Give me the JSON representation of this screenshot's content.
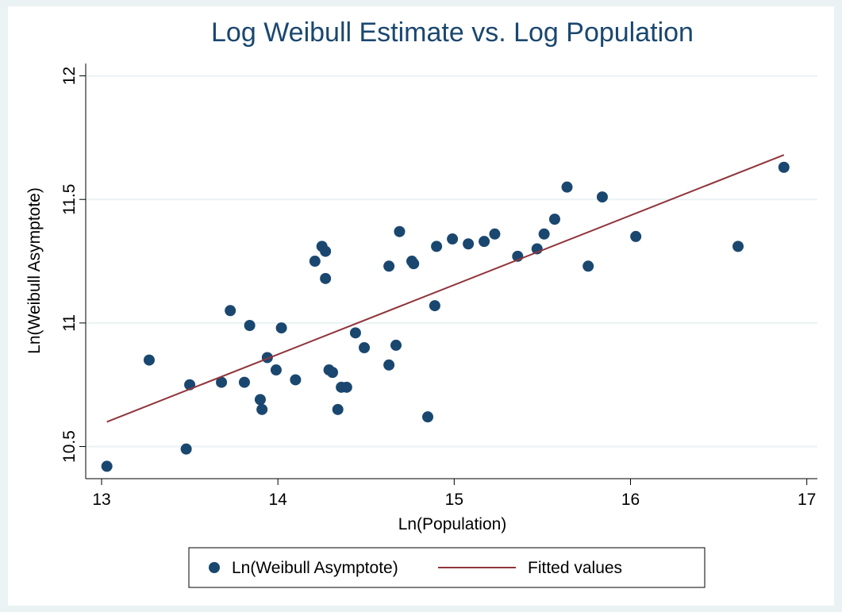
{
  "chart_data": {
    "type": "scatter",
    "title": "Log Weibull Estimate vs. Log Population",
    "x_label": "Ln(Population)",
    "y_label": "Ln(Weibull Asymptote)",
    "xlim": [
      12.91,
      17.06
    ],
    "ylim": [
      10.37,
      12.05
    ],
    "xticks": [
      13,
      14,
      15,
      16,
      17
    ],
    "yticks": [
      10.5,
      11,
      11.5,
      12
    ],
    "grid": true,
    "legend": "bottom",
    "series": [
      {
        "name": "Ln(Weibull Asymptote)",
        "type": "scatter",
        "color": "#1a476f",
        "x": [
          13.03,
          13.27,
          13.48,
          13.5,
          13.68,
          13.73,
          13.81,
          13.84,
          13.9,
          13.91,
          13.94,
          13.99,
          14.02,
          14.1,
          14.21,
          14.25,
          14.27,
          14.27,
          14.29,
          14.31,
          14.34,
          14.36,
          14.39,
          14.44,
          14.49,
          14.63,
          14.63,
          14.67,
          14.69,
          14.76,
          14.77,
          14.85,
          14.89,
          14.9,
          14.99,
          15.08,
          15.17,
          15.23,
          15.36,
          15.47,
          15.51,
          15.57,
          15.64,
          15.76,
          15.84,
          16.03,
          16.61,
          16.87
        ],
        "values": [
          10.42,
          10.85,
          10.49,
          10.75,
          10.76,
          11.05,
          10.76,
          10.99,
          10.69,
          10.65,
          10.86,
          10.81,
          10.98,
          10.77,
          11.25,
          11.31,
          11.18,
          11.29,
          10.81,
          10.8,
          10.65,
          10.74,
          10.74,
          10.96,
          10.9,
          11.23,
          10.83,
          10.91,
          11.37,
          11.25,
          11.24,
          10.62,
          11.07,
          11.31,
          11.34,
          11.32,
          11.33,
          11.36,
          11.27,
          11.3,
          11.36,
          11.42,
          11.55,
          11.23,
          11.51,
          11.35,
          11.31,
          11.63
        ]
      },
      {
        "name": "Fitted values",
        "type": "line",
        "color": "#90353b",
        "x": [
          13.03,
          16.87
        ],
        "values": [
          10.6,
          11.68
        ]
      }
    ]
  }
}
